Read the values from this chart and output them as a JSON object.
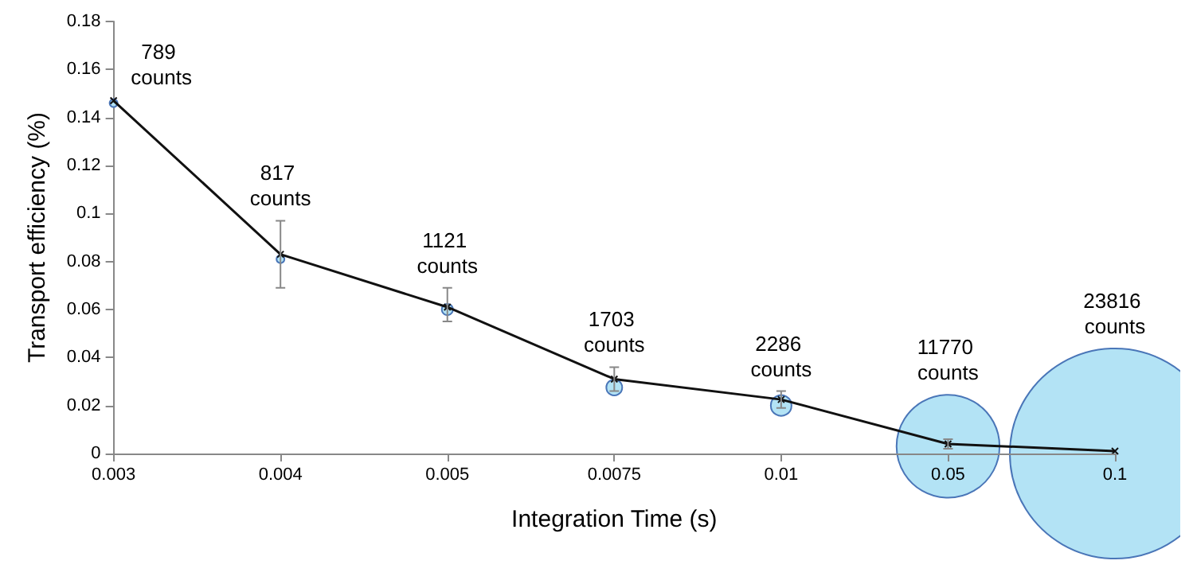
{
  "chart_data": {
    "type": "line",
    "xlabel": "Integration Time (s)",
    "ylabel": "Transport efficiency (%)",
    "categories": [
      "0.003",
      "0.004",
      "0.005",
      "0.0075",
      "0.01",
      "0.05",
      "0.1"
    ],
    "series": [
      {
        "type": "bubble",
        "color": "#b3e3f5",
        "values": [
          0.146,
          0.081,
          0.06,
          0.0275,
          0.02,
          0.003,
          0
        ],
        "sizes": [
          0.0014,
          0.0014,
          0.0028,
          0.0057,
          0.0097,
          0.24,
          1
        ]
      },
      {
        "type": "line",
        "color": "#111111",
        "marker": "cross",
        "values": [
          0.147,
          0.083,
          0.061,
          0.031,
          0.0225,
          0.004,
          0.001
        ],
        "errors": [
          null,
          [
            0.069,
            0.097
          ],
          [
            0.055,
            0.069
          ],
          [
            0.026,
            0.036
          ],
          [
            0.019,
            0.026
          ],
          [
            0.002,
            0.006
          ],
          null
        ]
      }
    ],
    "annotations": [
      "789 counts",
      "817 counts",
      "1121 counts",
      "1703 counts",
      "2286 counts",
      "11770 counts",
      "23816 counts"
    ],
    "ylim": [
      0,
      0.18
    ],
    "yticks": [
      0,
      0.02,
      0.04,
      0.06,
      0.08,
      0.1,
      0.12,
      0.14,
      0.16,
      0.18
    ],
    "grid": false
  }
}
